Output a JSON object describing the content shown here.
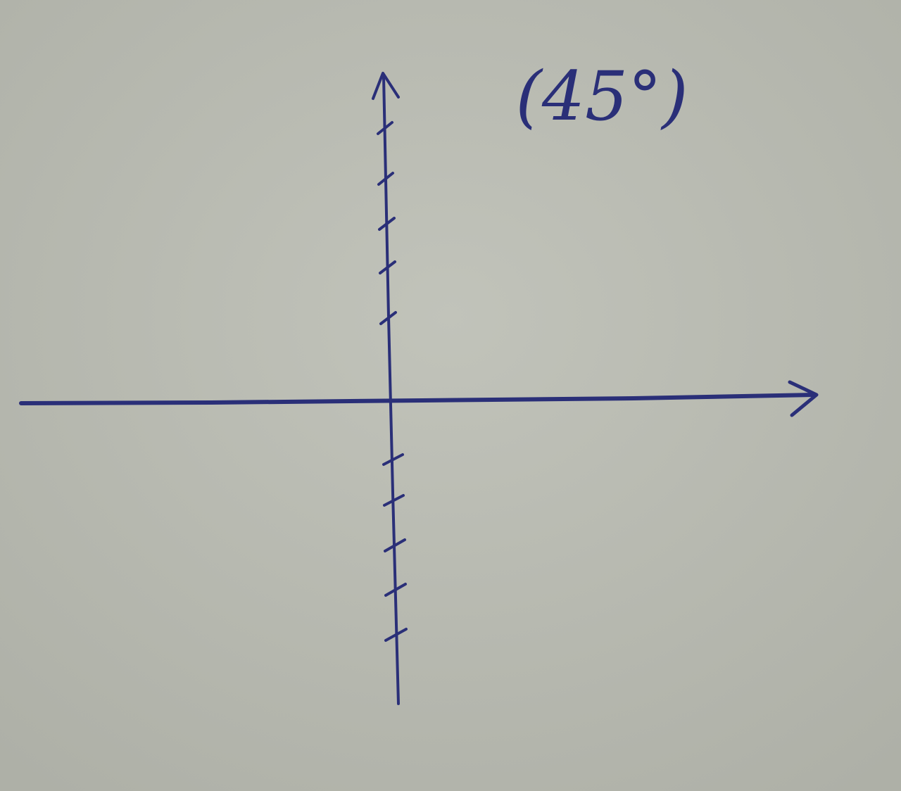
{
  "annotation": "(45°)"
}
